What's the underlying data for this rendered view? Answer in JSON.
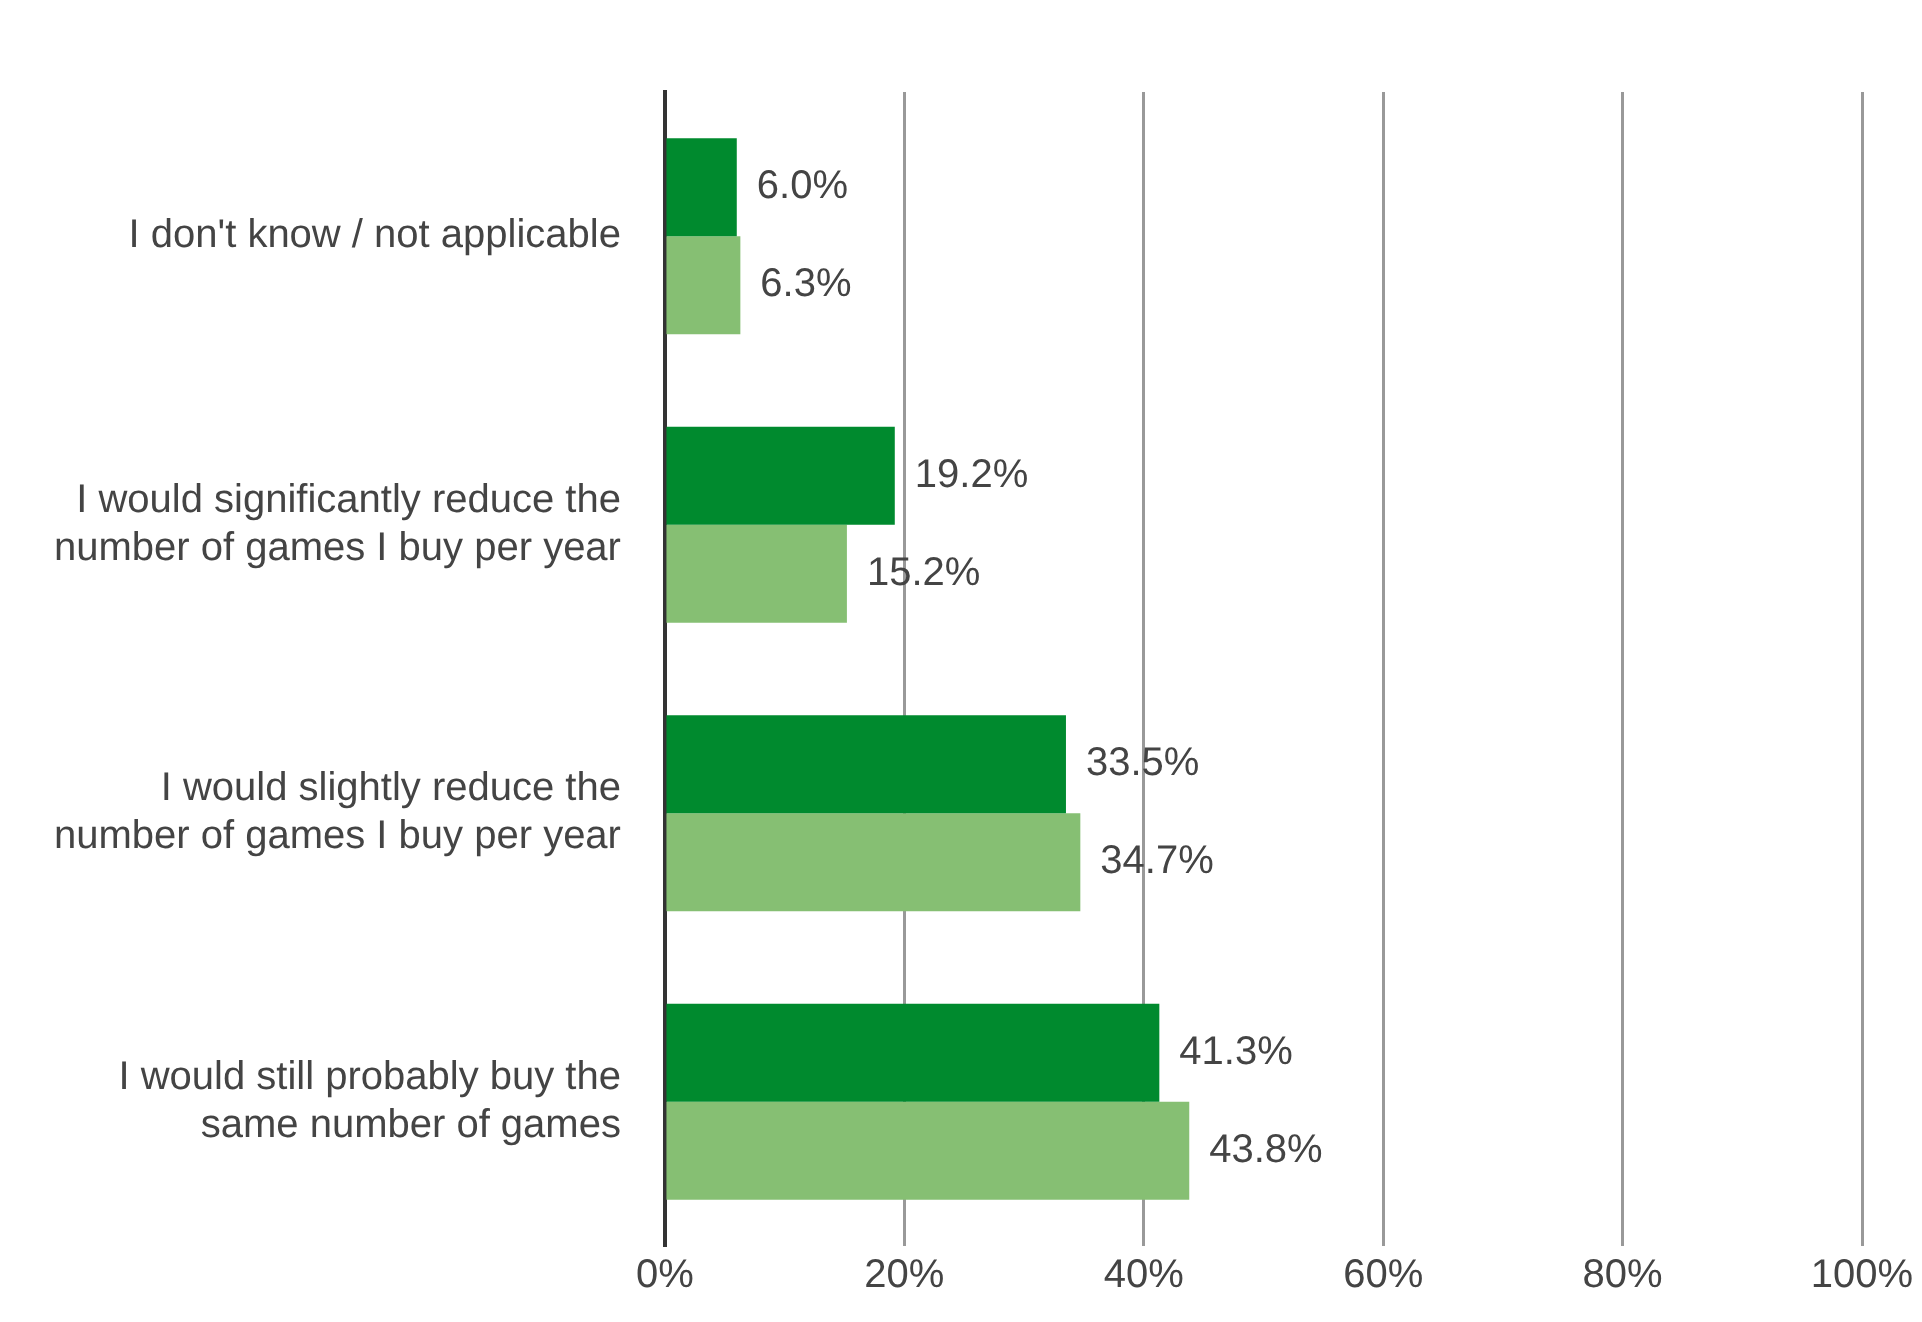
{
  "chart_data": {
    "type": "bar",
    "orientation": "horizontal",
    "categories": [
      "I don't know / not applicable",
      "I would significantly reduce the number of games I buy per year",
      "I would slightly reduce the number of games I buy per year",
      "I would still probably buy the same number of games"
    ],
    "series": [
      {
        "color": "#008a2e",
        "values": [
          6.0,
          19.2,
          33.5,
          41.3
        ],
        "value_labels": [
          "6.0%",
          "19.2%",
          "33.5%",
          "41.3%"
        ]
      },
      {
        "color": "#86bf73",
        "values": [
          6.3,
          15.2,
          34.7,
          43.8
        ],
        "value_labels": [
          "6.3%",
          "15.2%",
          "34.7%",
          "43.8%"
        ]
      }
    ],
    "xlim": [
      0,
      100
    ],
    "xticks": [
      {
        "value": 0,
        "label": "0%"
      },
      {
        "value": 20,
        "label": "20%"
      },
      {
        "value": 40,
        "label": "40%"
      },
      {
        "value": 60,
        "label": "60%"
      },
      {
        "value": 80,
        "label": "80%"
      },
      {
        "value": 100,
        "label": "100%"
      }
    ],
    "grid": "x"
  }
}
